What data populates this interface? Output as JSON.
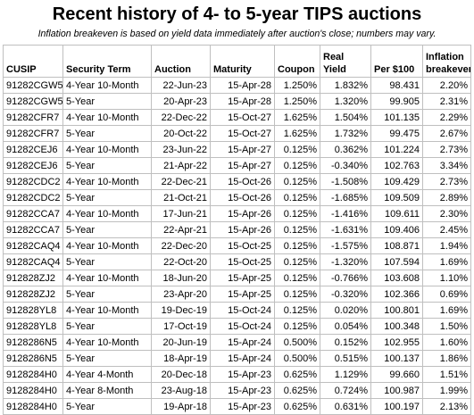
{
  "title": "Recent history of 4- to 5-year TIPS auctions",
  "subtitle": "Inflation breakeven is based on yield data immediately after auction's close; numbers may vary.",
  "columns": [
    "CUSIP",
    "Security Term",
    "Auction",
    "Maturity",
    "Coupon",
    "Real Yield",
    "Per $100",
    "Inflation breakeven"
  ],
  "rows": [
    [
      "91282CGW5",
      "4-Year 10-Month",
      "22-Jun-23",
      "15-Apr-28",
      "1.250%",
      "1.832%",
      "98.431",
      "2.20%"
    ],
    [
      "91282CGW5",
      "5-Year",
      "20-Apr-23",
      "15-Apr-28",
      "1.250%",
      "1.320%",
      "99.905",
      "2.31%"
    ],
    [
      "91282CFR7",
      "4-Year 10-Month",
      "22-Dec-22",
      "15-Oct-27",
      "1.625%",
      "1.504%",
      "101.135",
      "2.29%"
    ],
    [
      "91282CFR7",
      "5-Year",
      "20-Oct-22",
      "15-Oct-27",
      "1.625%",
      "1.732%",
      "99.475",
      "2.67%"
    ],
    [
      "91282CEJ6",
      "4-Year 10-Month",
      "23-Jun-22",
      "15-Apr-27",
      "0.125%",
      "0.362%",
      "101.224",
      "2.73%"
    ],
    [
      "91282CEJ6",
      "5-Year",
      "21-Apr-22",
      "15-Apr-27",
      "0.125%",
      "-0.340%",
      "102.763",
      "3.34%"
    ],
    [
      "91282CDC2",
      "4-Year 10-Month",
      "22-Dec-21",
      "15-Oct-26",
      "0.125%",
      "-1.508%",
      "109.429",
      "2.73%"
    ],
    [
      "91282CDC2",
      "5-Year",
      "21-Oct-21",
      "15-Oct-26",
      "0.125%",
      "-1.685%",
      "109.509",
      "2.89%"
    ],
    [
      "91282CCA7",
      "4-Year 10-Month",
      "17-Jun-21",
      "15-Apr-26",
      "0.125%",
      "-1.416%",
      "109.611",
      "2.30%"
    ],
    [
      "91282CCA7",
      "5-Year",
      "22-Apr-21",
      "15-Apr-26",
      "0.125%",
      "-1.631%",
      "109.406",
      "2.45%"
    ],
    [
      "91282CAQ4",
      "4-Year 10-Month",
      "22-Dec-20",
      "15-Oct-25",
      "0.125%",
      "-1.575%",
      "108.871",
      "1.94%"
    ],
    [
      "91282CAQ4",
      "5-Year",
      "22-Oct-20",
      "15-Oct-25",
      "0.125%",
      "-1.320%",
      "107.594",
      "1.69%"
    ],
    [
      "912828ZJ2",
      "4-Year 10-Month",
      "18-Jun-20",
      "15-Apr-25",
      "0.125%",
      "-0.766%",
      "103.608",
      "1.10%"
    ],
    [
      "912828ZJ2",
      "5-Year",
      "23-Apr-20",
      "15-Apr-25",
      "0.125%",
      "-0.320%",
      "102.366",
      "0.69%"
    ],
    [
      "912828YL8",
      "4-Year 10-Month",
      "19-Dec-19",
      "15-Oct-24",
      "0.125%",
      "0.020%",
      "100.801",
      "1.69%"
    ],
    [
      "912828YL8",
      "5-Year",
      "17-Oct-19",
      "15-Oct-24",
      "0.125%",
      "0.054%",
      "100.348",
      "1.50%"
    ],
    [
      "9128286N5",
      "4-Year 10-Month",
      "20-Jun-19",
      "15-Apr-24",
      "0.500%",
      "0.152%",
      "102.955",
      "1.60%"
    ],
    [
      "9128286N5",
      "5-Year",
      "18-Apr-19",
      "15-Apr-24",
      "0.500%",
      "0.515%",
      "100.137",
      "1.86%"
    ],
    [
      "9128284H0",
      "4-Year 4-Month",
      "20-Dec-18",
      "15-Apr-23",
      "0.625%",
      "1.129%",
      "99.660",
      "1.51%"
    ],
    [
      "9128284H0",
      "4-Year 8-Month",
      "23-Aug-18",
      "15-Apr-23",
      "0.625%",
      "0.724%",
      "100.987",
      "1.99%"
    ],
    [
      "9128284H0",
      "5-Year",
      "19-Apr-18",
      "15-Apr-23",
      "0.625%",
      "0.631%",
      "100.197",
      "2.13%"
    ]
  ]
}
